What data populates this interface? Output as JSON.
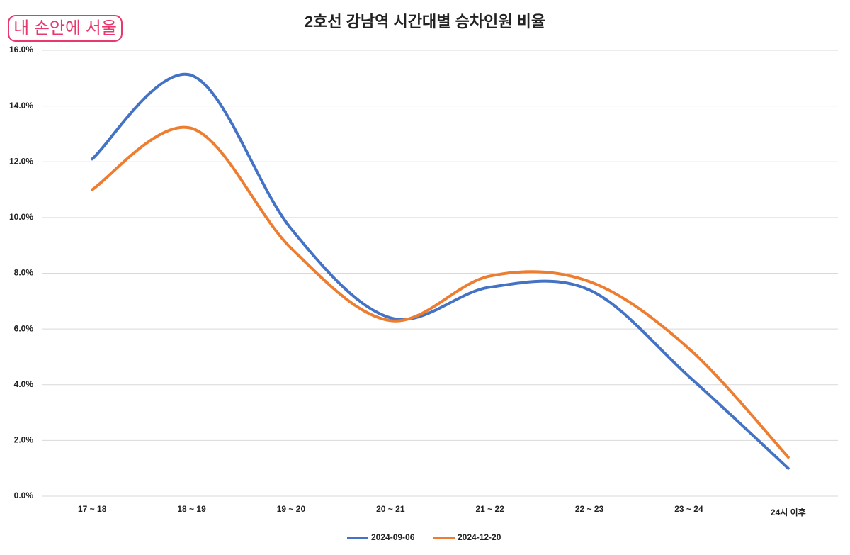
{
  "logo": "내 손안에 서울",
  "chart_data": {
    "type": "line",
    "title": "2호선 강남역 시간대별 승차인원 비율",
    "categories": [
      "17 ~ 18",
      "18 ~ 19",
      "19 ~ 20",
      "20 ~ 21",
      "21 ~ 22",
      "22 ~ 23",
      "23 ~ 24",
      "24시 이후"
    ],
    "series": [
      {
        "name": "2024-09-06",
        "color": "#4472c4",
        "values": [
          12.1,
          15.1,
          9.6,
          6.4,
          7.5,
          7.4,
          4.3,
          1.0
        ]
      },
      {
        "name": "2024-12-20",
        "color": "#ed7d31",
        "values": [
          11.0,
          13.2,
          8.9,
          6.3,
          7.9,
          7.7,
          5.3,
          1.4
        ]
      }
    ],
    "ylim": [
      0,
      16
    ],
    "yticks": [
      {
        "value": 0,
        "label": "0.0%"
      },
      {
        "value": 2,
        "label": "2.0%"
      },
      {
        "value": 4,
        "label": "4.0%"
      },
      {
        "value": 6,
        "label": "6.0%"
      },
      {
        "value": 8,
        "label": "8.0%"
      },
      {
        "value": 10,
        "label": "10.0%"
      },
      {
        "value": 12,
        "label": "12.0%"
      },
      {
        "value": 14,
        "label": "14.0%"
      },
      {
        "value": 16,
        "label": "16.0%"
      }
    ],
    "grid": true,
    "smooth": true,
    "legend": "bottom"
  }
}
